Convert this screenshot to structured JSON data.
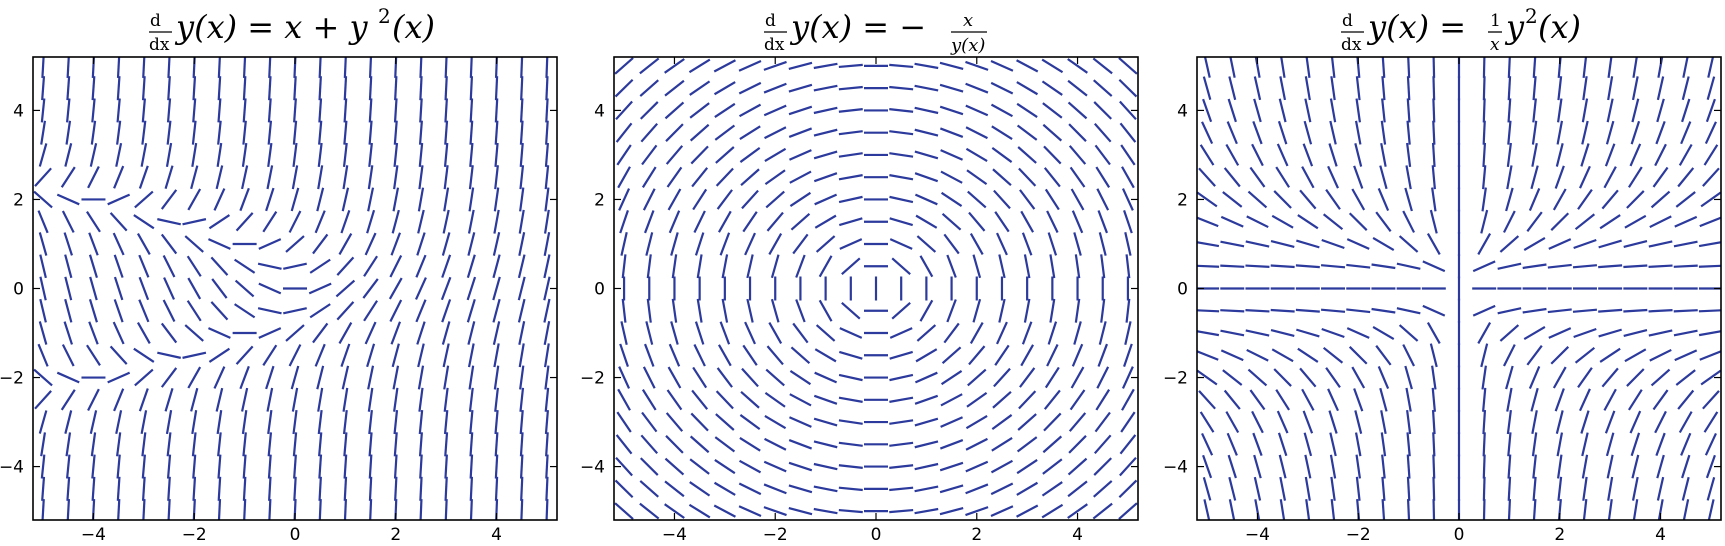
{
  "chart_data": [
    {
      "type": "slope_field",
      "title": "d/dx y(x) = x + y^2(x)",
      "equation": "x + y^2",
      "xlim": [
        -5.2,
        5.2
      ],
      "ylim": [
        -5.2,
        5.2
      ],
      "xticks": [
        "−4",
        "−2",
        "0",
        "2",
        "4"
      ],
      "yticks": [
        "−4",
        "−2",
        "0",
        "2",
        "4"
      ],
      "grid": false,
      "segment_color": "#2b3a9c"
    },
    {
      "type": "slope_field",
      "title": "d/dx y(x) = −x / y(x)",
      "equation": "-x / y",
      "xlim": [
        -5.2,
        5.2
      ],
      "ylim": [
        -5.2,
        5.2
      ],
      "xticks": [
        "−4",
        "−2",
        "0",
        "2",
        "4"
      ],
      "yticks": [
        "−4",
        "−2",
        "0",
        "2",
        "4"
      ],
      "grid": false,
      "segment_color": "#2b3a9c"
    },
    {
      "type": "slope_field",
      "title": "d/dx y(x) = (1/x) y^2(x)",
      "equation": "y^2 / x",
      "xlim": [
        -5.2,
        5.2
      ],
      "ylim": [
        -5.2,
        5.2
      ],
      "xticks": [
        "−4",
        "−2",
        "0",
        "2",
        "4"
      ],
      "yticks": [
        "−4",
        "−2",
        "0",
        "2",
        "4"
      ],
      "grid": false,
      "segment_color": "#2b3a9c"
    }
  ]
}
